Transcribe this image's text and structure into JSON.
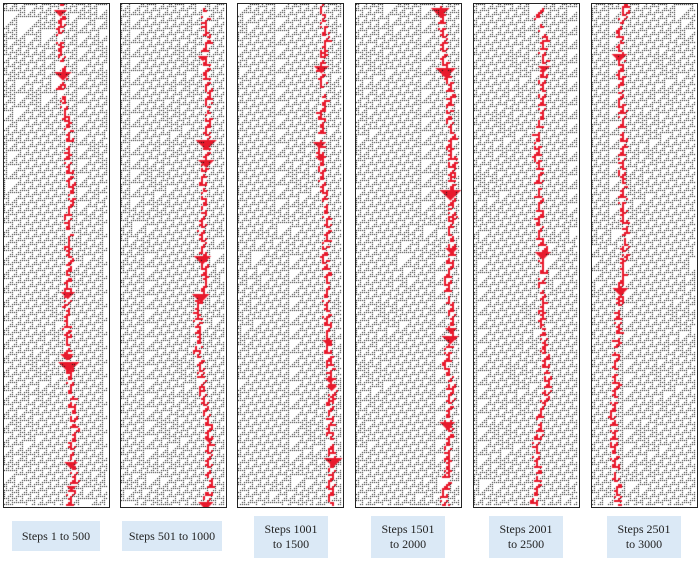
{
  "panels": [
    {
      "caption": "Steps 1 to 500"
    },
    {
      "caption": "Steps 501 to 1000"
    },
    {
      "caption": "Steps 1001\nto 1500"
    },
    {
      "caption": "Steps 1501\nto 2000"
    },
    {
      "caption": "Steps 2001\nto 2500"
    },
    {
      "caption": "Steps 2501\nto 3000"
    }
  ],
  "colors": {
    "cell": "#111111",
    "highlight": "#e8192c",
    "caption_bg": "#dbe9f6",
    "border": "#222222"
  }
}
